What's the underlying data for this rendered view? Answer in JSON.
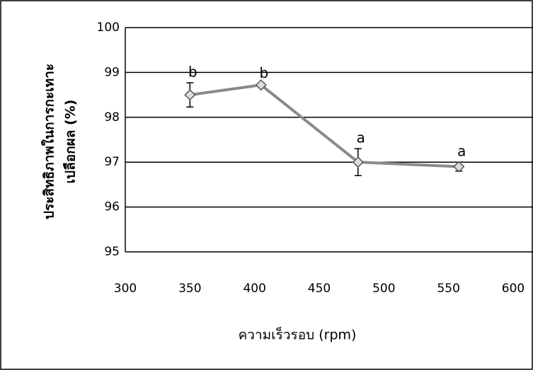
{
  "chart_data": {
    "type": "line",
    "x_label": "ความเร็วรอบ (rpm)",
    "y_label": [
      "ประสิทธิภาพในการกะเทาะ",
      "เปลือกผล (%)"
    ],
    "x": [
      350,
      405,
      480,
      558
    ],
    "series": [
      {
        "color": "#8a8a8a",
        "values": [
          98.5,
          98.72,
          97.0,
          96.9
        ],
        "errors": [
          0.27,
          0.03,
          0.3,
          0.1
        ],
        "point_labels": [
          "b",
          "b",
          "a",
          "a"
        ]
      }
    ],
    "xlim": [
      300,
      600
    ],
    "xticks": [
      300,
      350,
      400,
      450,
      500,
      550,
      600
    ],
    "ylim": [
      95,
      100
    ],
    "yticks": [
      95,
      96,
      97,
      98,
      99,
      100
    ],
    "grid": true
  }
}
